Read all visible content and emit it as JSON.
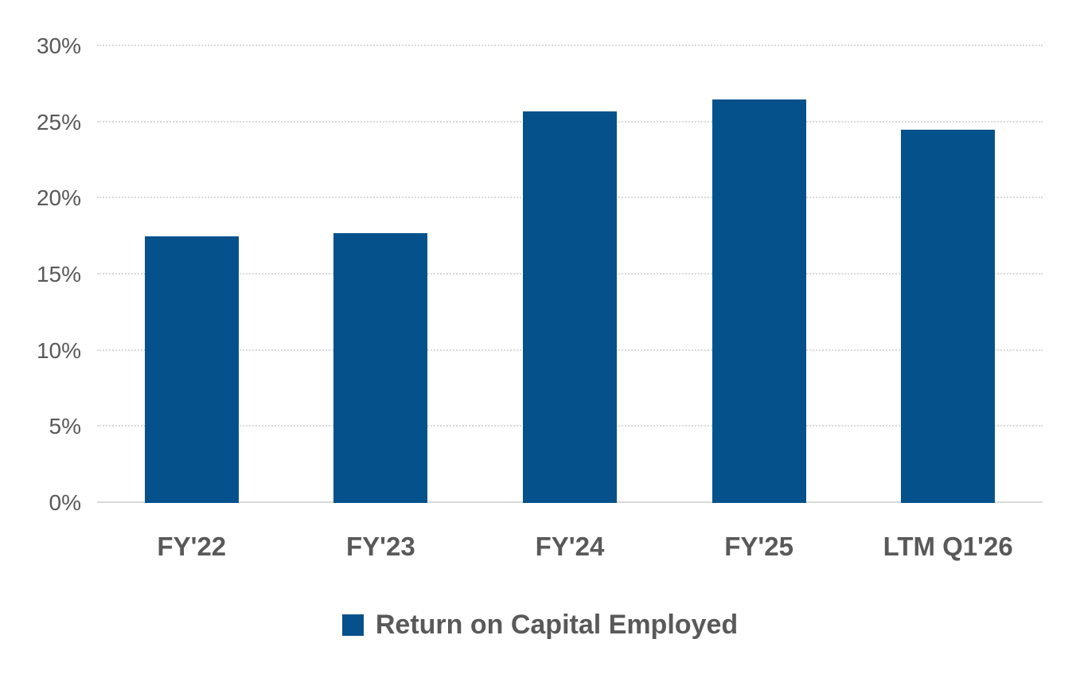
{
  "chart_data": {
    "type": "bar",
    "title": "",
    "categories": [
      "FY'22",
      "FY'23",
      "FY'24",
      "FY'25",
      "LTM Q1'26"
    ],
    "values": [
      17.5,
      17.7,
      25.7,
      26.5,
      24.5
    ],
    "unit": "%",
    "xlabel": "",
    "ylabel": "",
    "ylim": [
      0,
      30
    ],
    "yticks": [
      0,
      5,
      10,
      15,
      20,
      25,
      30
    ],
    "ytick_labels": [
      "0%",
      "5%",
      "10%",
      "15%",
      "20%",
      "25%",
      "30%"
    ],
    "grid": "horizontal-dotted",
    "legend_position": "bottom",
    "legend": [
      {
        "label": "Return on Capital Employed",
        "color": "#04518C"
      }
    ],
    "colors": {
      "bar": "#04518C",
      "text": "#595959",
      "grid": "#D9D9D9",
      "baseline": "#D9D9D9",
      "background": "#FFFFFF"
    }
  }
}
